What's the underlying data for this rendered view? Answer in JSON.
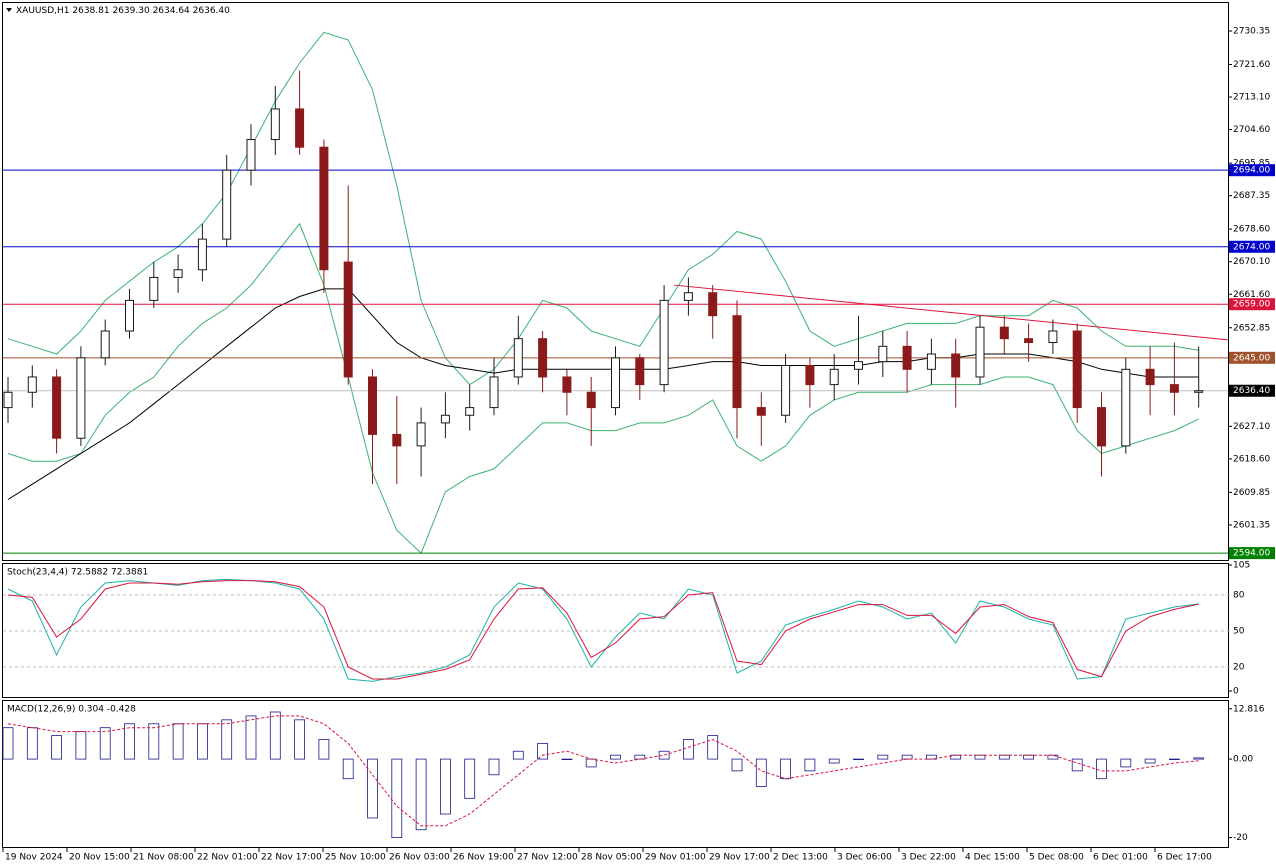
{
  "chart_data": {
    "type": "candlestick",
    "symbol": "XAUUSD,H1",
    "quote": [
      "2638.81",
      "2639.30",
      "2634.64",
      "2636.40"
    ],
    "up_color": "#1a1a1a",
    "down_color": "#8b1a1a",
    "time_labels": [
      "19 Nov 2024",
      "20 Nov 15:00",
      "21 Nov 08:00",
      "22 Nov 01:00",
      "22 Nov 17:00",
      "25 Nov 10:00",
      "26 Nov 03:00",
      "26 Nov 19:00",
      "27 Nov 12:00",
      "28 Nov 05:00",
      "29 Nov 01:00",
      "29 Nov 17:00",
      "2 Dec 13:00",
      "3 Dec 06:00",
      "3 Dec 22:00",
      "4 Dec 15:00",
      "5 Dec 08:00",
      "6 Dec 01:00",
      "6 Dec 17:00"
    ],
    "open": [
      2632,
      2636,
      2640,
      2624,
      2645,
      2652,
      2660,
      2666,
      2668,
      2676,
      2694,
      2702,
      2710,
      2700,
      2670,
      2640,
      2625,
      2622,
      2628,
      2630,
      2632,
      2640,
      2650,
      2640,
      2636,
      2632,
      2645,
      2638,
      2660,
      2662,
      2656,
      2632,
      2630,
      2643,
      2638,
      2642,
      2644,
      2648,
      2642,
      2646,
      2640,
      2653,
      2650,
      2649,
      2652,
      2632,
      2622,
      2642,
      2638,
      2636
    ],
    "high": [
      2640,
      2643,
      2642,
      2648,
      2655,
      2663,
      2670,
      2672,
      2680,
      2698,
      2706,
      2716,
      2720,
      2702,
      2690,
      2642,
      2635,
      2632,
      2636,
      2638,
      2645,
      2656,
      2652,
      2642,
      2640,
      2648,
      2646,
      2664,
      2666,
      2664,
      2660,
      2636,
      2646,
      2645,
      2646,
      2656,
      2652,
      2652,
      2650,
      2650,
      2656,
      2656,
      2654,
      2655,
      2654,
      2636,
      2645,
      2648,
      2649,
      2648
    ],
    "low": [
      2628,
      2632,
      2620,
      2622,
      2643,
      2650,
      2658,
      2662,
      2665,
      2674,
      2690,
      2698,
      2698,
      2662,
      2638,
      2612,
      2612,
      2614,
      2624,
      2626,
      2630,
      2638,
      2636,
      2630,
      2622,
      2630,
      2634,
      2636,
      2656,
      2650,
      2624,
      2622,
      2628,
      2632,
      2634,
      2638,
      2640,
      2636,
      2638,
      2632,
      2638,
      2646,
      2644,
      2646,
      2628,
      2614,
      2620,
      2630,
      2630,
      2632
    ],
    "close": [
      2636,
      2640,
      2624,
      2645,
      2652,
      2660,
      2666,
      2668,
      2676,
      2694,
      2702,
      2710,
      2700,
      2668,
      2640,
      2625,
      2622,
      2628,
      2630,
      2632,
      2640,
      2650,
      2640,
      2636,
      2632,
      2645,
      2638,
      2660,
      2662,
      2656,
      2632,
      2630,
      2643,
      2638,
      2642,
      2644,
      2648,
      2642,
      2646,
      2640,
      2653,
      2650,
      2649,
      2652,
      2632,
      2622,
      2642,
      2638,
      2636,
      2636.4
    ],
    "bands": {
      "color": "#3cb371",
      "upper": [
        2650,
        2648,
        2646,
        2652,
        2660,
        2665,
        2670,
        2674,
        2680,
        2688,
        2700,
        2712,
        2722,
        2730,
        2728,
        2715,
        2690,
        2660,
        2645,
        2638,
        2642,
        2650,
        2660,
        2658,
        2652,
        2650,
        2648,
        2658,
        2668,
        2672,
        2678,
        2676,
        2665,
        2652,
        2648,
        2650,
        2652,
        2654,
        2654,
        2654,
        2656,
        2656,
        2656,
        2660,
        2658,
        2652,
        2648,
        2648,
        2648,
        2647
      ],
      "lower": [
        2620,
        2618,
        2618,
        2620,
        2630,
        2636,
        2640,
        2648,
        2654,
        2658,
        2664,
        2672,
        2680,
        2664,
        2640,
        2615,
        2600,
        2594,
        2610,
        2614,
        2616,
        2622,
        2628,
        2628,
        2626,
        2626,
        2628,
        2628,
        2630,
        2634,
        2622,
        2618,
        2622,
        2630,
        2634,
        2636,
        2636,
        2636,
        2638,
        2638,
        2638,
        2640,
        2640,
        2638,
        2626,
        2620,
        2622,
        2624,
        2626,
        2629
      ]
    },
    "ma": {
      "color": "#000000",
      "values": [
        2608,
        2612,
        2616,
        2620,
        2624,
        2628,
        2633,
        2638,
        2643,
        2648,
        2653,
        2658,
        2661,
        2663,
        2663,
        2656,
        2649,
        2645,
        2643,
        2642,
        2641,
        2642,
        2642,
        2642,
        2642,
        2642,
        2642,
        2642,
        2643,
        2644,
        2644,
        2643,
        2643,
        2643,
        2643,
        2643,
        2644,
        2644,
        2645,
        2645,
        2646,
        2646,
        2646,
        2645,
        2644,
        2642,
        2641,
        2640,
        2640,
        2640
      ]
    },
    "trendline": {
      "color": "#dc143c",
      "x": [
        27.4,
        50.2
      ],
      "values": [
        2664,
        2649.7
      ]
    },
    "levels": [
      {
        "value": 2694,
        "label": "2694.00",
        "color": "#0000cd"
      },
      {
        "value": 2674,
        "label": "2674.00",
        "color": "#0000cd"
      },
      {
        "value": 2659,
        "label": "2659.00",
        "color": "#dc143c"
      },
      {
        "value": 2645,
        "label": "2645.00",
        "color": "#a0522d"
      },
      {
        "value": 2636.4,
        "label": "2636.40",
        "color": "#000000"
      },
      {
        "value": 2594,
        "label": "2594.00",
        "color": "#008000"
      }
    ],
    "ylim": [
      2592.2,
      2737.66
    ],
    "yticks": [
      {
        "value": 2730.35,
        "label": "2730.35"
      },
      {
        "value": 2721.6,
        "label": "2721.60"
      },
      {
        "value": 2713.1,
        "label": "2713.10"
      },
      {
        "value": 2704.6,
        "label": "2704.60"
      },
      {
        "value": 2695.85,
        "label": "2695.85"
      },
      {
        "value": 2687.35,
        "label": "2687.35"
      },
      {
        "value": 2678.6,
        "label": "2678.60"
      },
      {
        "value": 2670.1,
        "label": "2670.10"
      },
      {
        "value": 2661.6,
        "label": "2661.60"
      },
      {
        "value": 2652.85,
        "label": "2652.85"
      },
      {
        "value": 2627.1,
        "label": "2627.10"
      },
      {
        "value": 2618.6,
        "label": "2618.60"
      },
      {
        "value": 2609.85,
        "label": "2609.85"
      },
      {
        "value": 2601.35,
        "label": "2601.35"
      }
    ],
    "stoch": {
      "title": "Stoch(23,4,4) 72.5882 72.3881",
      "ylim": [
        -5,
        105
      ],
      "yticks": [
        105,
        80,
        50,
        20,
        0
      ],
      "series": [
        {
          "color": "#20b2aa",
          "values": [
            85,
            75,
            30,
            70,
            90,
            92,
            90,
            88,
            92,
            93,
            92,
            90,
            85,
            60,
            10,
            8,
            12,
            15,
            20,
            30,
            70,
            90,
            85,
            60,
            20,
            45,
            65,
            60,
            85,
            80,
            15,
            25,
            55,
            62,
            68,
            75,
            70,
            60,
            65,
            40,
            75,
            70,
            60,
            55,
            10,
            12,
            60,
            65,
            70,
            72.6
          ]
        },
        {
          "color": "#dc143c",
          "values": [
            80,
            78,
            45,
            60,
            85,
            90,
            90,
            89,
            91,
            92,
            92,
            91,
            87,
            70,
            20,
            10,
            10,
            14,
            18,
            26,
            60,
            85,
            86,
            65,
            28,
            40,
            60,
            62,
            80,
            82,
            25,
            22,
            50,
            60,
            66,
            72,
            72,
            63,
            63,
            48,
            70,
            72,
            62,
            57,
            18,
            12,
            50,
            62,
            68,
            72.4
          ]
        }
      ]
    },
    "macd": {
      "title": "MACD(12,26,9) 0.304 -0.428",
      "ylim": [
        -22.4,
        14.8
      ],
      "yticks": [
        12.816,
        {
          "value": 0,
          "label": "0.00"
        },
        -20
      ],
      "hist_color": "#1a1a8b",
      "signal_color": "#dc143c",
      "histogram": [
        8,
        8,
        6,
        7,
        8,
        9,
        9,
        9,
        9,
        10,
        11,
        12,
        10,
        5,
        -5,
        -15,
        -20,
        -18,
        -14,
        -10,
        -4,
        2,
        4,
        0,
        -2,
        1,
        1,
        2,
        5,
        6,
        -3,
        -7,
        -5,
        -3,
        -1,
        0,
        1,
        1,
        1,
        1,
        1,
        1,
        1,
        1,
        -3,
        -5,
        -2,
        -1,
        0,
        0.304
      ],
      "signal": [
        9,
        8,
        7,
        7,
        7,
        8,
        8,
        9,
        9,
        9,
        10,
        11,
        11,
        9,
        4,
        -4,
        -12,
        -17,
        -17,
        -14,
        -9,
        -4,
        1,
        2,
        0,
        -1,
        0,
        1,
        3,
        5,
        2,
        -3,
        -5,
        -4,
        -3,
        -2,
        -1,
        0,
        0,
        1,
        1,
        1,
        1,
        1,
        -1,
        -3,
        -3,
        -2,
        -1,
        -0.428
      ]
    }
  }
}
